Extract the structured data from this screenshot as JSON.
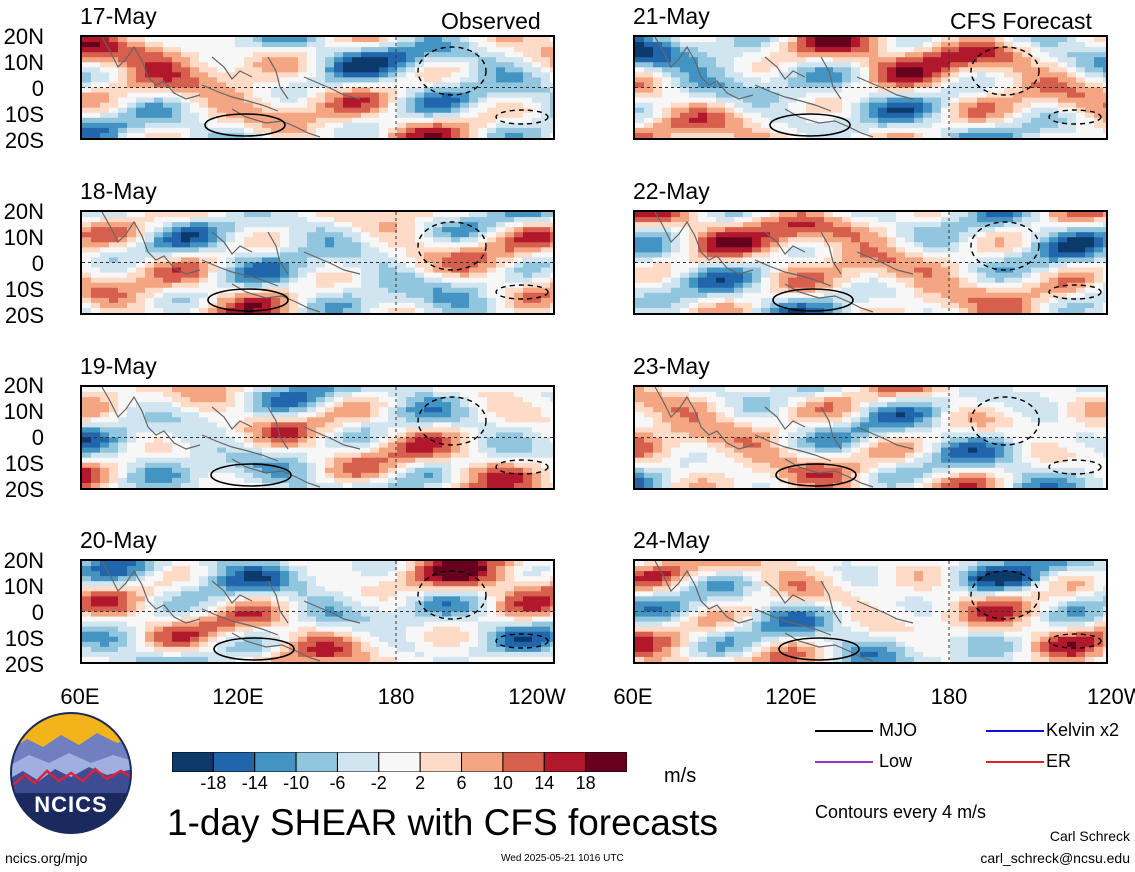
{
  "headers": {
    "observed": "Observed",
    "forecast": "CFS Forecast"
  },
  "panels": {
    "observed": [
      "17-May",
      "18-May",
      "19-May",
      "20-May"
    ],
    "forecast": [
      "21-May",
      "22-May",
      "23-May",
      "24-May"
    ]
  },
  "lat_labels": [
    "20N",
    "10N",
    "0",
    "10S",
    "20S"
  ],
  "lon_labels": [
    "60E",
    "120E",
    "180",
    "120W"
  ],
  "colorbar": {
    "labels": [
      "-18",
      "-14",
      "-10",
      "-6",
      "-2",
      "2",
      "6",
      "10",
      "14",
      "18"
    ],
    "colors": [
      "#0b3a6b",
      "#2166ac",
      "#4393c3",
      "#92c5de",
      "#d1e5f0",
      "#f7f7f7",
      "#fddbc7",
      "#f4a582",
      "#d6604d",
      "#b2182b",
      "#67001f"
    ],
    "units": "m/s"
  },
  "legend": {
    "items": [
      {
        "label": "MJO",
        "color": "#000000"
      },
      {
        "label": "Kelvin x2",
        "color": "#1010e0"
      },
      {
        "label": "Low",
        "color": "#9933cc"
      },
      {
        "label": "ER",
        "color": "#dd2222"
      }
    ],
    "contour_note": "Contours every 4 m/s"
  },
  "logo": {
    "text": "NCICS"
  },
  "title": "1-day SHEAR with CFS forecasts",
  "footer": {
    "url": "ncics.org/mjo",
    "timestamp": "Wed 2025-05-21 1016 UTC",
    "author": "Carl Schreck",
    "email": "carl_schreck@ncsu.edu"
  }
}
